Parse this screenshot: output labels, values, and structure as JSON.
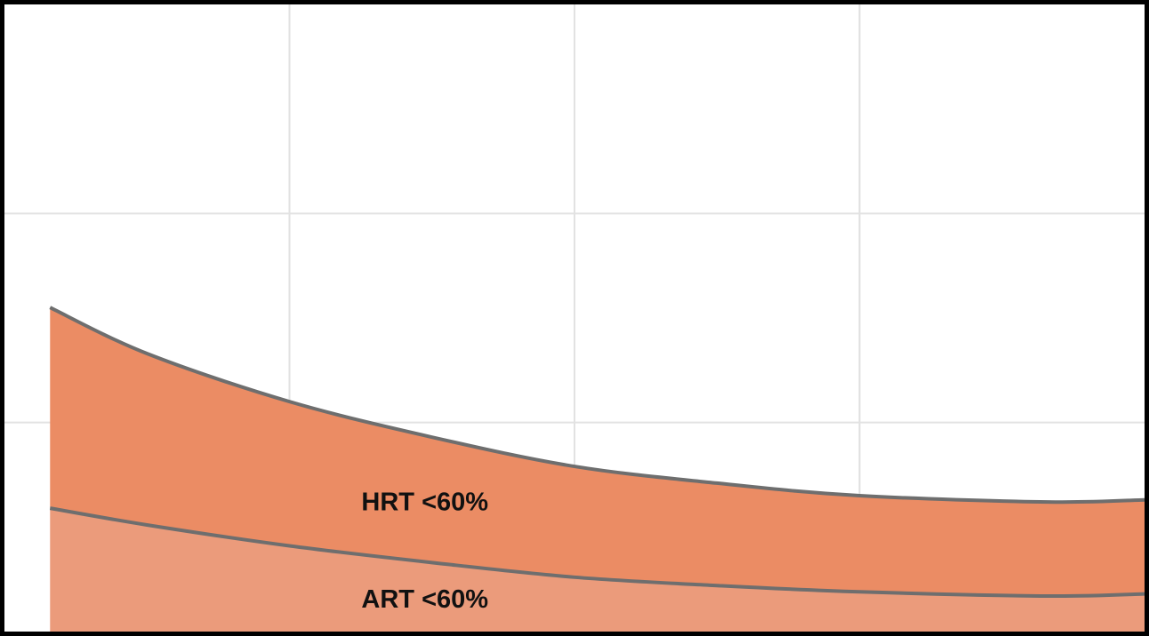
{
  "chart_data": {
    "type": "stacked-area",
    "x": [
      0.16,
      0.5,
      1,
      1.5,
      2,
      2.5,
      3,
      3.66,
      4
    ],
    "series": [
      {
        "name": "ART <60%",
        "color": "#eb9b7b",
        "values": [
          0.59,
          0.51,
          0.41,
          0.33,
          0.26,
          0.22,
          0.19,
          0.17,
          0.18
        ]
      },
      {
        "name": "HRT <60%",
        "color": "#eb8c64",
        "values": [
          0.96,
          0.82,
          0.69,
          0.6,
          0.53,
          0.49,
          0.46,
          0.45,
          0.45
        ]
      }
    ],
    "line_color": "#6e6e6e",
    "xlim": [
      0,
      4
    ],
    "ylim": [
      0,
      3
    ],
    "xticks": [
      1,
      2,
      3
    ],
    "yticks": [
      1,
      2
    ],
    "grid": true
  }
}
